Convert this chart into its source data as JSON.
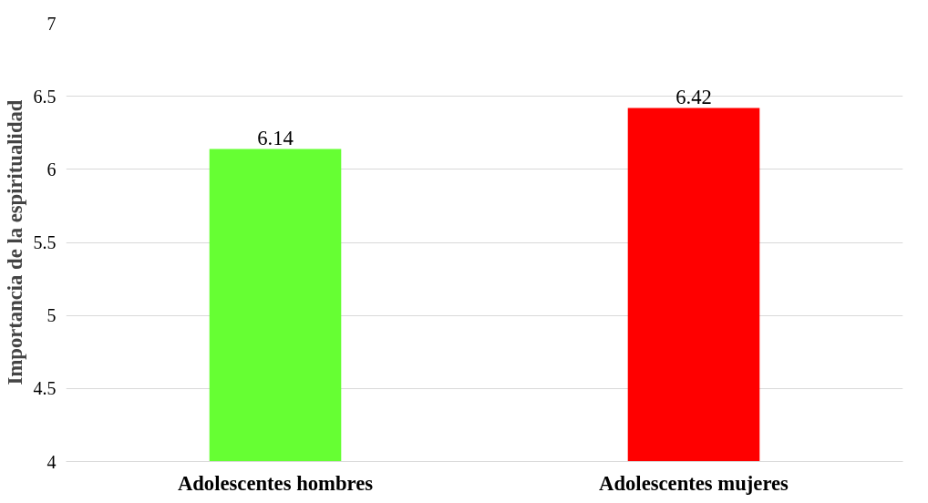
{
  "chart_data": {
    "type": "bar",
    "ylabel": "Importancia de la espiritualidad",
    "categories": [
      "Adolescentes hombres",
      "Adolescentes mujeres"
    ],
    "values": [
      6.14,
      6.42
    ],
    "colors": [
      "#66ff33",
      "#ff0000"
    ],
    "ylim": [
      4,
      7
    ],
    "yticks": [
      4,
      4.5,
      5,
      5.5,
      6,
      6.5,
      7
    ],
    "grid": "y",
    "data_labels": true
  }
}
